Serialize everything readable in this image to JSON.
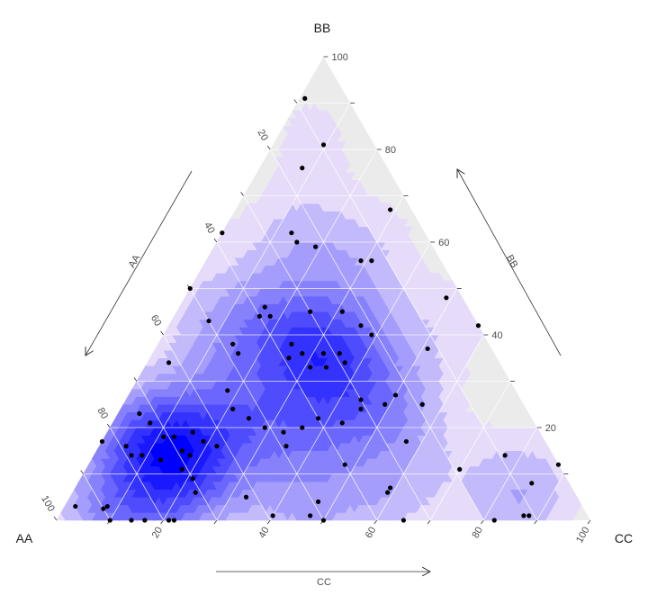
{
  "chart_data": {
    "type": "ternary-scatter-density",
    "vertex_labels": {
      "top": "BB",
      "left": "AA",
      "right": "CC"
    },
    "arrow_labels": {
      "AA": "AA",
      "BB": "BB",
      "CC": "CC"
    },
    "ticks": [
      20,
      40,
      60,
      80,
      100
    ],
    "tick_labels": [
      "20",
      "40",
      "60",
      "80",
      "100"
    ],
    "grid_step": 10,
    "grid": true,
    "colors": {
      "panel": "#ebebeb",
      "grid": "#ffffff",
      "density_low": "#e6dcfa",
      "density_high": "#0000ff",
      "point": "#000000"
    },
    "density_levels": 10,
    "points": [
      {
        "AA": 8,
        "BB": 91,
        "CC": 1
      },
      {
        "AA": 9.5,
        "BB": 81,
        "CC": 9.5
      },
      {
        "AA": 16,
        "BB": 76,
        "CC": 8
      },
      {
        "AA": 4,
        "BB": 67,
        "CC": 29
      },
      {
        "AA": 25,
        "BB": 62,
        "CC": 13
      },
      {
        "AA": 25,
        "BB": 60,
        "CC": 15
      },
      {
        "AA": 22,
        "BB": 59,
        "CC": 19
      },
      {
        "AA": 38,
        "BB": 62,
        "CC": 0
      },
      {
        "AA": 15,
        "BB": 56,
        "CC": 29
      },
      {
        "AA": 13,
        "BB": 56,
        "CC": 31
      },
      {
        "AA": 50,
        "BB": 50,
        "CC": 0
      },
      {
        "AA": 3,
        "BB": 48,
        "CC": 49
      },
      {
        "AA": 38,
        "BB": 46,
        "CC": 16
      },
      {
        "AA": 40,
        "BB": 44,
        "CC": 16
      },
      {
        "AA": 38,
        "BB": 44,
        "CC": 18
      },
      {
        "AA": 50,
        "BB": 43,
        "CC": 7
      },
      {
        "AA": 30,
        "BB": 45,
        "CC": 25
      },
      {
        "AA": 24,
        "BB": 45,
        "CC": 31
      },
      {
        "AA": 0,
        "BB": 42,
        "CC": 58
      },
      {
        "AA": 22,
        "BB": 42,
        "CC": 36
      },
      {
        "AA": 48,
        "BB": 38,
        "CC": 14
      },
      {
        "AA": 48,
        "BB": 36,
        "CC": 16
      },
      {
        "AA": 21,
        "BB": 40,
        "CC": 39
      },
      {
        "AA": 12,
        "BB": 37,
        "CC": 51
      },
      {
        "AA": 37,
        "BB": 38,
        "CC": 25
      },
      {
        "AA": 32,
        "BB": 36,
        "CC": 32
      },
      {
        "AA": 29,
        "BB": 36,
        "CC": 35
      },
      {
        "AA": 36,
        "BB": 36,
        "CC": 28
      },
      {
        "AA": 36,
        "BB": 33,
        "CC": 31
      },
      {
        "AA": 33,
        "BB": 33,
        "CC": 34
      },
      {
        "AA": 29,
        "BB": 34,
        "CC": 37
      },
      {
        "AA": 39,
        "BB": 35,
        "CC": 26
      },
      {
        "AA": 62,
        "BB": 34,
        "CC": 4
      },
      {
        "AA": 54,
        "BB": 28,
        "CC": 18
      },
      {
        "AA": 30,
        "BB": 26,
        "CC": 44
      },
      {
        "AA": 23,
        "BB": 27,
        "CC": 50
      },
      {
        "AA": 55,
        "BB": 24,
        "CC": 21
      },
      {
        "AA": 53,
        "BB": 22,
        "CC": 25
      },
      {
        "AA": 48,
        "BB": 19,
        "CC": 33
      },
      {
        "AA": 51,
        "BB": 20,
        "CC": 29
      },
      {
        "AA": 40,
        "BB": 22,
        "CC": 38
      },
      {
        "AA": 44,
        "BB": 20,
        "CC": 36
      },
      {
        "AA": 73,
        "BB": 23,
        "CC": 4
      },
      {
        "AA": 72,
        "BB": 21,
        "CC": 7
      },
      {
        "AA": 69,
        "BB": 18,
        "CC": 13
      },
      {
        "AA": 65,
        "BB": 19,
        "CC": 16
      },
      {
        "AA": 71,
        "BB": 18,
        "CC": 11
      },
      {
        "AA": 64,
        "BB": 17,
        "CC": 19
      },
      {
        "AA": 79,
        "BB": 16,
        "CC": 5
      },
      {
        "AA": 69,
        "BB": 15,
        "CC": 16
      },
      {
        "AA": 79,
        "BB": 14,
        "CC": 7
      },
      {
        "AA": 77,
        "BB": 14,
        "CC": 9
      },
      {
        "AA": 74,
        "BB": 13,
        "CC": 13
      },
      {
        "AA": 62,
        "BB": 16,
        "CC": 22
      },
      {
        "AA": 49,
        "BB": 16,
        "CC": 35
      },
      {
        "AA": 71,
        "BB": 11,
        "CC": 18
      },
      {
        "AA": 70,
        "BB": 9,
        "CC": 21
      },
      {
        "AA": 68,
        "BB": 14,
        "CC": 18
      },
      {
        "AA": 40,
        "BB": 12,
        "CC": 48
      },
      {
        "AA": 26,
        "BB": 17,
        "CC": 57
      },
      {
        "AA": 19,
        "BB": 25,
        "CC": 56
      },
      {
        "AA": 31,
        "BB": 24,
        "CC": 45
      },
      {
        "AA": 26,
        "BB": 25,
        "CC": 49
      },
      {
        "AA": 36,
        "BB": 21,
        "CC": 43
      },
      {
        "AA": 19,
        "BB": 11,
        "CC": 70
      },
      {
        "AA": 9,
        "BB": 14,
        "CC": 77
      },
      {
        "AA": 7,
        "BB": 8,
        "CC": 85
      },
      {
        "AA": 34,
        "BB": 7,
        "CC": 59
      },
      {
        "AA": 35,
        "BB": 6,
        "CC": 59
      },
      {
        "AA": 11,
        "BB": 1,
        "CC": 88
      },
      {
        "AA": 0,
        "BB": 12,
        "CC": 88
      },
      {
        "AA": 71,
        "BB": 6,
        "CC": 23
      },
      {
        "AA": 62,
        "BB": 5,
        "CC": 33
      },
      {
        "AA": 49,
        "BB": 4,
        "CC": 47
      },
      {
        "AA": 95,
        "BB": 3,
        "CC": 2
      },
      {
        "AA": 89,
        "BB": 3,
        "CC": 8
      },
      {
        "AA": 90,
        "BB": 2.5,
        "CC": 7.5
      },
      {
        "AA": 90,
        "BB": 0,
        "CC": 10
      },
      {
        "AA": 86,
        "BB": 0,
        "CC": 14
      },
      {
        "AA": 83.5,
        "BB": 0,
        "CC": 16.5
      },
      {
        "AA": 79,
        "BB": 0,
        "CC": 21
      },
      {
        "AA": 78,
        "BB": 0,
        "CC": 22
      },
      {
        "AA": 59,
        "BB": 1,
        "CC": 40
      },
      {
        "AA": 52,
        "BB": 1,
        "CC": 47
      },
      {
        "AA": 50,
        "BB": 0,
        "CC": 50
      },
      {
        "AA": 35,
        "BB": 0,
        "CC": 65
      },
      {
        "AA": 18,
        "BB": 0,
        "CC": 82
      },
      {
        "AA": 12,
        "BB": 1,
        "CC": 87
      },
      {
        "AA": 83,
        "BB": 17,
        "CC": 0
      }
    ]
  }
}
